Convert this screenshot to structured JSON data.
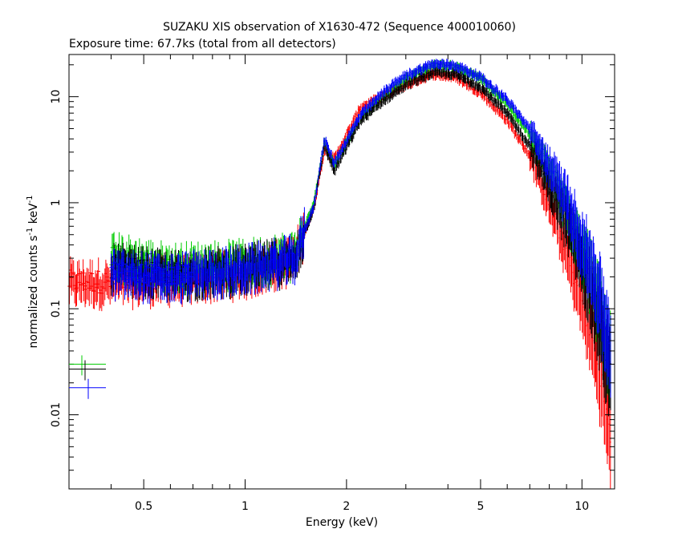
{
  "title": "SUZAKU XIS observation of X1630-472 (Sequence 400010060)",
  "subtitle": "Exposure time: 67.7ks (total from all detectors)",
  "chart_data": {
    "type": "scatter",
    "xlabel": "Energy (keV)",
    "ylabel": "normalized counts s",
    "ylabel_sup1": "-1",
    "ylabel_mid": " keV",
    "ylabel_sup2": "-1",
    "xscale": "log",
    "yscale": "log",
    "xlim": [
      0.3,
      12.5
    ],
    "ylim": [
      0.002,
      25
    ],
    "x_ticks": [
      {
        "value": 0.5,
        "label": "0.5"
      },
      {
        "value": 1,
        "label": "1"
      },
      {
        "value": 2,
        "label": "2"
      },
      {
        "value": 5,
        "label": "5"
      },
      {
        "value": 10,
        "label": "10"
      }
    ],
    "y_ticks": [
      {
        "value": 0.01,
        "label": "0.01"
      },
      {
        "value": 0.1,
        "label": "0.1"
      },
      {
        "value": 1,
        "label": "1"
      },
      {
        "value": 10,
        "label": "10"
      }
    ],
    "series": [
      {
        "color": "#ff0000",
        "emin": 0.3,
        "points": [
          [
            0.3,
            0.18
          ],
          [
            0.4,
            0.18
          ],
          [
            0.6,
            0.19
          ],
          [
            1.0,
            0.22
          ],
          [
            1.4,
            0.3
          ],
          [
            1.6,
            0.9
          ],
          [
            1.72,
            3.2
          ],
          [
            1.84,
            2.6
          ],
          [
            2.2,
            8.0
          ],
          [
            2.6,
            10.5
          ],
          [
            3.0,
            13.0
          ],
          [
            3.6,
            16.5
          ],
          [
            4.2,
            15.5
          ],
          [
            5.0,
            11.0
          ],
          [
            6.0,
            6.0
          ],
          [
            7.0,
            2.8
          ],
          [
            8.0,
            1.0
          ],
          [
            9.0,
            0.35
          ],
          [
            10.0,
            0.12
          ],
          [
            11.0,
            0.04
          ],
          [
            12.2,
            0.006
          ]
        ]
      },
      {
        "color": "#00cc00",
        "emin": 0.4,
        "points": [
          [
            0.4,
            0.32
          ],
          [
            0.6,
            0.25
          ],
          [
            1.0,
            0.27
          ],
          [
            1.4,
            0.33
          ],
          [
            1.6,
            1.0
          ],
          [
            1.72,
            3.8
          ],
          [
            1.84,
            2.3
          ],
          [
            2.2,
            6.5
          ],
          [
            2.6,
            10.5
          ],
          [
            3.0,
            15.0
          ],
          [
            3.6,
            20.0
          ],
          [
            4.2,
            19.5
          ],
          [
            5.0,
            15.0
          ],
          [
            6.0,
            8.5
          ],
          [
            7.0,
            4.5
          ],
          [
            8.0,
            2.0
          ],
          [
            9.0,
            0.9
          ],
          [
            10.0,
            0.4
          ],
          [
            11.0,
            0.15
          ],
          [
            12.2,
            0.03
          ]
        ]
      },
      {
        "color": "#000000",
        "emin": 0.4,
        "points": [
          [
            0.4,
            0.25
          ],
          [
            0.6,
            0.21
          ],
          [
            1.0,
            0.24
          ],
          [
            1.4,
            0.3
          ],
          [
            1.6,
            0.9
          ],
          [
            1.72,
            3.5
          ],
          [
            1.84,
            2.0
          ],
          [
            2.2,
            6.0
          ],
          [
            2.6,
            9.5
          ],
          [
            3.0,
            13.0
          ],
          [
            3.6,
            17.0
          ],
          [
            4.2,
            16.5
          ],
          [
            5.0,
            12.5
          ],
          [
            6.0,
            7.0
          ],
          [
            7.0,
            3.5
          ],
          [
            8.0,
            1.5
          ],
          [
            9.0,
            0.65
          ],
          [
            10.0,
            0.3
          ],
          [
            11.0,
            0.1
          ],
          [
            12.2,
            0.025
          ]
        ]
      },
      {
        "color": "#0000ff",
        "emin": 0.4,
        "points": [
          [
            0.4,
            0.22
          ],
          [
            0.6,
            0.2
          ],
          [
            1.0,
            0.24
          ],
          [
            1.4,
            0.3
          ],
          [
            1.6,
            0.95
          ],
          [
            1.72,
            4.0
          ],
          [
            1.84,
            2.4
          ],
          [
            2.2,
            6.8
          ],
          [
            2.6,
            11.5
          ],
          [
            3.0,
            16.0
          ],
          [
            3.6,
            20.5
          ],
          [
            4.2,
            20.0
          ],
          [
            5.0,
            15.5
          ],
          [
            6.0,
            9.5
          ],
          [
            7.0,
            5.0
          ],
          [
            8.0,
            2.3
          ],
          [
            9.0,
            1.1
          ],
          [
            10.0,
            0.45
          ],
          [
            11.0,
            0.2
          ],
          [
            12.2,
            0.04
          ]
        ]
      }
    ],
    "legend_markers": [
      {
        "color": "#00cc00",
        "y": 0.03
      },
      {
        "color": "#000000",
        "y": 0.027
      },
      {
        "color": "#0000ff",
        "y": 0.018
      }
    ]
  }
}
